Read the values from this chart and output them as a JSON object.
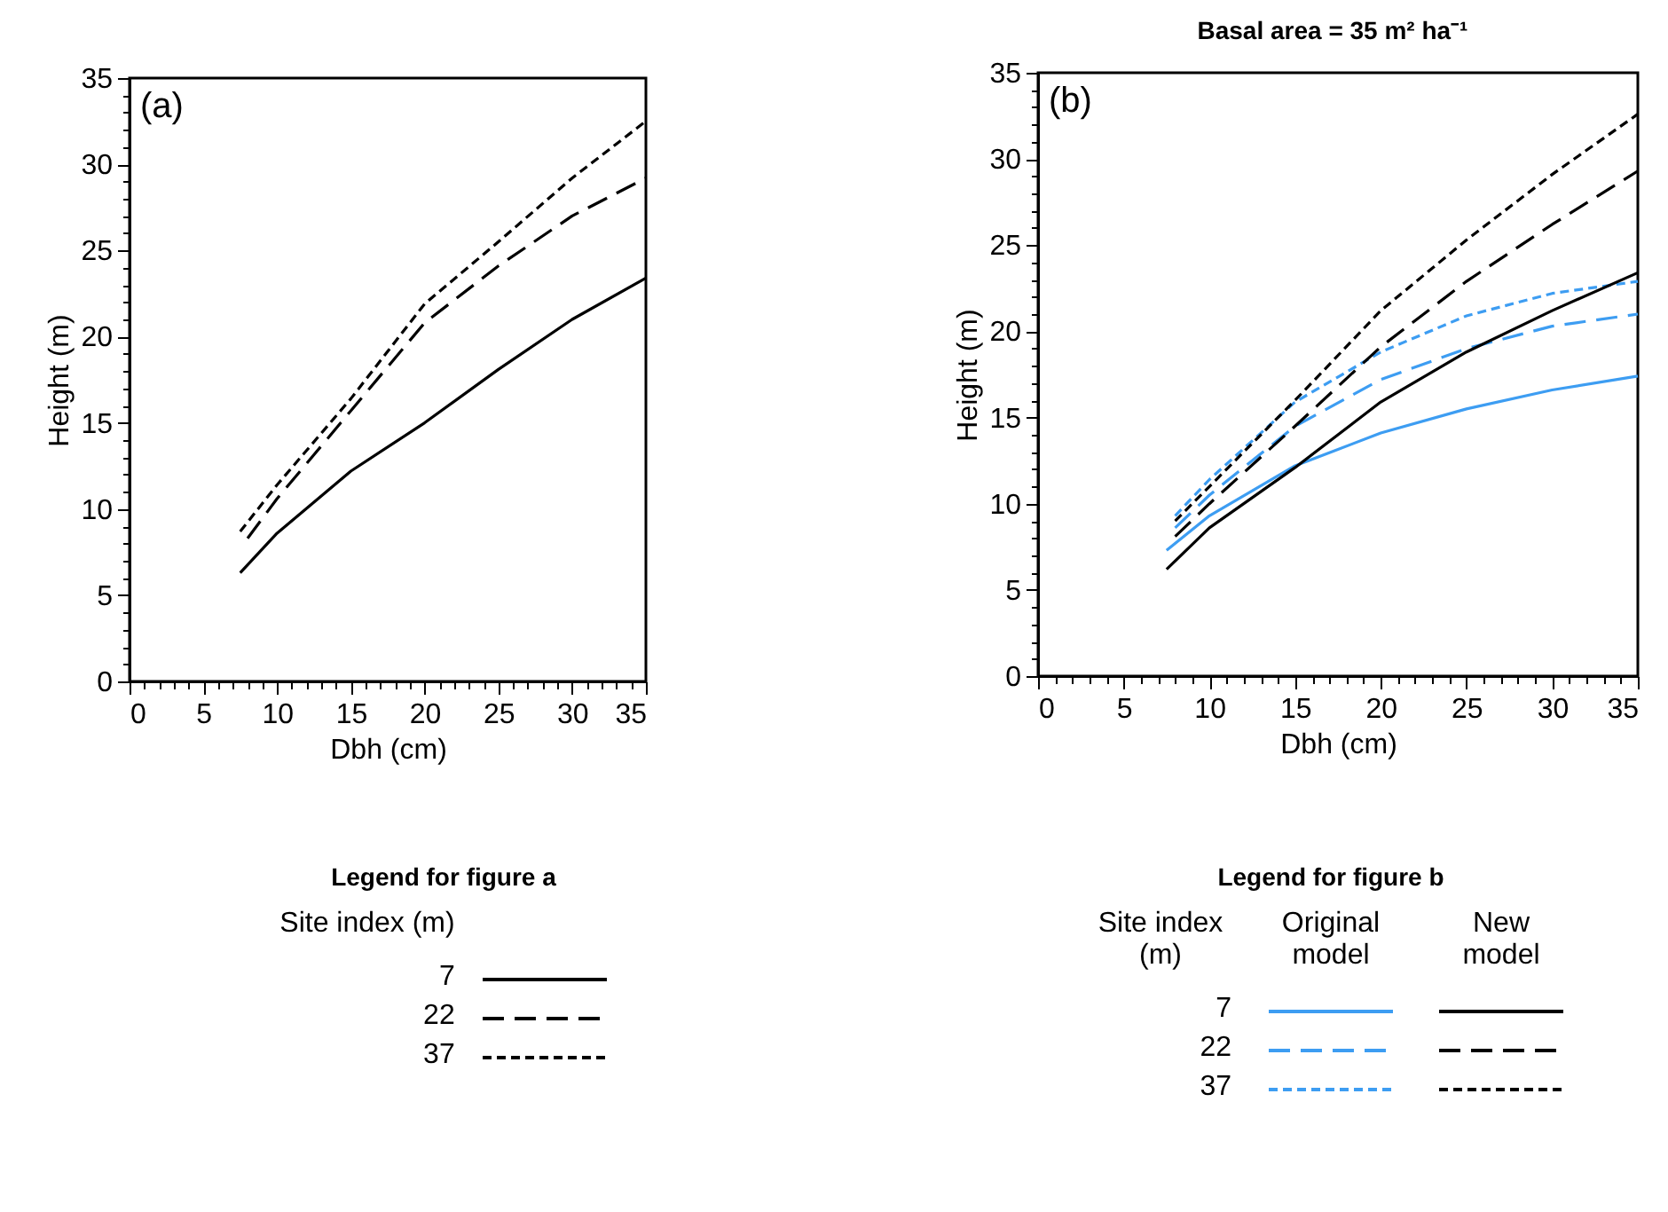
{
  "chart_data": [
    {
      "type": "line",
      "xlabel": "Dbh (cm)",
      "ylabel": "Height (m)",
      "legend_title": "Legend for figure a",
      "legend": "bottom",
      "grid": false,
      "annotations": [
        "(a)",
        "Site index (m)"
      ],
      "xlim": [
        0,
        35
      ],
      "ylim": [
        0,
        35
      ],
      "xticks": [
        0,
        {
          "value": 1,
          "label": null
        },
        {
          "value": 2,
          "label": null
        },
        {
          "value": 3,
          "label": null
        },
        {
          "value": 4,
          "label": null
        },
        5,
        {
          "value": 6,
          "label": null
        },
        {
          "value": 7,
          "label": null
        },
        {
          "value": 8,
          "label": null
        },
        {
          "value": 9,
          "label": null
        },
        10,
        {
          "value": 11,
          "label": null
        },
        {
          "value": 12,
          "label": null
        },
        {
          "value": 13,
          "label": null
        },
        {
          "value": 14,
          "label": null
        },
        15,
        {
          "value": 16,
          "label": null
        },
        {
          "value": 17,
          "label": null
        },
        {
          "value": 18,
          "label": null
        },
        {
          "value": 19,
          "label": null
        },
        20,
        {
          "value": 21,
          "label": null
        },
        {
          "value": 22,
          "label": null
        },
        {
          "value": 23,
          "label": null
        },
        {
          "value": 24,
          "label": null
        },
        25,
        {
          "value": 26,
          "label": null
        },
        {
          "value": 27,
          "label": null
        },
        {
          "value": 28,
          "label": null
        },
        {
          "value": 29,
          "label": null
        },
        30,
        {
          "value": 31,
          "label": null
        },
        {
          "value": 32,
          "label": null
        },
        {
          "value": 33,
          "label": null
        },
        {
          "value": 34,
          "label": null
        },
        35
      ],
      "yticks": [
        0,
        {
          "value": 1,
          "label": null
        },
        {
          "value": 2,
          "label": null
        },
        {
          "value": 3,
          "label": null
        },
        {
          "value": 4,
          "label": null
        },
        5,
        {
          "value": 6,
          "label": null
        },
        {
          "value": 7,
          "label": null
        },
        {
          "value": 8,
          "label": null
        },
        {
          "value": 9,
          "label": null
        },
        10,
        {
          "value": 11,
          "label": null
        },
        {
          "value": 12,
          "label": null
        },
        {
          "value": 13,
          "label": null
        },
        {
          "value": 14,
          "label": null
        },
        15,
        {
          "value": 16,
          "label": null
        },
        {
          "value": 17,
          "label": null
        },
        {
          "value": 18,
          "label": null
        },
        {
          "value": 19,
          "label": null
        },
        20,
        {
          "value": 21,
          "label": null
        },
        {
          "value": 22,
          "label": null
        },
        {
          "value": 23,
          "label": null
        },
        {
          "value": 24,
          "label": null
        },
        25,
        {
          "value": 26,
          "label": null
        },
        {
          "value": 27,
          "label": null
        },
        {
          "value": 28,
          "label": null
        },
        {
          "value": 29,
          "label": null
        },
        30,
        {
          "value": 31,
          "label": null
        },
        {
          "value": 32,
          "label": null
        },
        {
          "value": 33,
          "label": null
        },
        {
          "value": 34,
          "label": null
        },
        35
      ],
      "series": [
        {
          "name": "7",
          "color": "#000000",
          "line_style": "solid",
          "x": [
            7.5,
            10,
            15,
            20,
            25,
            30,
            35
          ],
          "values": [
            6.3,
            8.6,
            12.2,
            15.0,
            18.1,
            21.0,
            23.4
          ]
        },
        {
          "name": "22",
          "color": "#000000",
          "line_style": "dashed",
          "x": [
            8,
            10,
            15,
            20,
            25,
            30,
            35
          ],
          "values": [
            8.3,
            10.6,
            15.7,
            20.8,
            24.1,
            27.0,
            29.2
          ]
        },
        {
          "name": "37",
          "color": "#000000",
          "line_style": "dotted",
          "x": [
            7.5,
            10,
            15,
            20,
            25,
            30,
            35
          ],
          "values": [
            8.7,
            11.4,
            16.4,
            21.9,
            25.5,
            29.2,
            32.5
          ]
        }
      ]
    },
    {
      "type": "line",
      "title": "Basal area = 35 m² ha⁻¹",
      "xlabel": "Dbh (cm)",
      "ylabel": "Height (m)",
      "legend_title": "Legend for figure b",
      "legend": "bottom",
      "grid": false,
      "annotations": [
        "(b)",
        "Site index (m)",
        "Original model",
        "New model"
      ],
      "xlim": [
        0,
        35
      ],
      "ylim": [
        0,
        35
      ],
      "xticks": [
        0,
        {
          "value": 1,
          "label": null
        },
        {
          "value": 2,
          "label": null
        },
        {
          "value": 3,
          "label": null
        },
        {
          "value": 4,
          "label": null
        },
        5,
        {
          "value": 6,
          "label": null
        },
        {
          "value": 7,
          "label": null
        },
        {
          "value": 8,
          "label": null
        },
        {
          "value": 9,
          "label": null
        },
        10,
        {
          "value": 11,
          "label": null
        },
        {
          "value": 12,
          "label": null
        },
        {
          "value": 13,
          "label": null
        },
        {
          "value": 14,
          "label": null
        },
        15,
        {
          "value": 16,
          "label": null
        },
        {
          "value": 17,
          "label": null
        },
        {
          "value": 18,
          "label": null
        },
        {
          "value": 19,
          "label": null
        },
        20,
        {
          "value": 21,
          "label": null
        },
        {
          "value": 22,
          "label": null
        },
        {
          "value": 23,
          "label": null
        },
        {
          "value": 24,
          "label": null
        },
        25,
        {
          "value": 26,
          "label": null
        },
        {
          "value": 27,
          "label": null
        },
        {
          "value": 28,
          "label": null
        },
        {
          "value": 29,
          "label": null
        },
        30,
        {
          "value": 31,
          "label": null
        },
        {
          "value": 32,
          "label": null
        },
        {
          "value": 33,
          "label": null
        },
        {
          "value": 34,
          "label": null
        },
        35
      ],
      "yticks": [
        0,
        {
          "value": 1,
          "label": null
        },
        {
          "value": 2,
          "label": null
        },
        {
          "value": 3,
          "label": null
        },
        {
          "value": 4,
          "label": null
        },
        5,
        {
          "value": 6,
          "label": null
        },
        {
          "value": 7,
          "label": null
        },
        {
          "value": 8,
          "label": null
        },
        {
          "value": 9,
          "label": null
        },
        10,
        {
          "value": 11,
          "label": null
        },
        {
          "value": 12,
          "label": null
        },
        {
          "value": 13,
          "label": null
        },
        {
          "value": 14,
          "label": null
        },
        15,
        {
          "value": 16,
          "label": null
        },
        {
          "value": 17,
          "label": null
        },
        {
          "value": 18,
          "label": null
        },
        {
          "value": 19,
          "label": null
        },
        20,
        {
          "value": 21,
          "label": null
        },
        {
          "value": 22,
          "label": null
        },
        {
          "value": 23,
          "label": null
        },
        {
          "value": 24,
          "label": null
        },
        25,
        {
          "value": 26,
          "label": null
        },
        {
          "value": 27,
          "label": null
        },
        {
          "value": 28,
          "label": null
        },
        {
          "value": 29,
          "label": null
        },
        30,
        {
          "value": 31,
          "label": null
        },
        {
          "value": 32,
          "label": null
        },
        {
          "value": 33,
          "label": null
        },
        {
          "value": 34,
          "label": null
        },
        35
      ],
      "series": [
        {
          "name": "7",
          "color": "#3d9df2",
          "line_style": "solid",
          "x": [
            7.5,
            10,
            15,
            20,
            25,
            30,
            35
          ],
          "values": [
            7.3,
            9.3,
            12.2,
            14.1,
            15.5,
            16.6,
            17.4
          ]
        },
        {
          "name": "22",
          "color": "#3d9df2",
          "line_style": "dashed",
          "x": [
            8,
            10,
            15,
            20,
            25,
            30,
            35
          ],
          "values": [
            8.6,
            10.5,
            14.5,
            17.2,
            19.0,
            20.3,
            21.0
          ]
        },
        {
          "name": "37",
          "color": "#3d9df2",
          "line_style": "dotted",
          "x": [
            8,
            10,
            15,
            20,
            25,
            30,
            35
          ],
          "values": [
            9.3,
            11.4,
            15.9,
            18.8,
            20.9,
            22.2,
            22.9
          ]
        },
        {
          "color": "#000000",
          "line_style": "solid",
          "x": [
            7.5,
            10,
            15,
            20,
            25,
            30,
            35
          ],
          "values": [
            6.2,
            8.6,
            12.1,
            15.9,
            18.8,
            21.2,
            23.4
          ]
        },
        {
          "color": "#000000",
          "line_style": "dashed",
          "x": [
            8,
            10,
            15,
            20,
            25,
            30,
            35
          ],
          "values": [
            8.1,
            10.0,
            14.5,
            19.1,
            22.9,
            26.2,
            29.3
          ]
        },
        {
          "color": "#000000",
          "line_style": "dotted",
          "x": [
            8,
            10,
            15,
            20,
            25,
            30,
            35
          ],
          "values": [
            9.0,
            11.0,
            16.0,
            21.2,
            25.3,
            29.1,
            32.6
          ]
        }
      ]
    }
  ]
}
